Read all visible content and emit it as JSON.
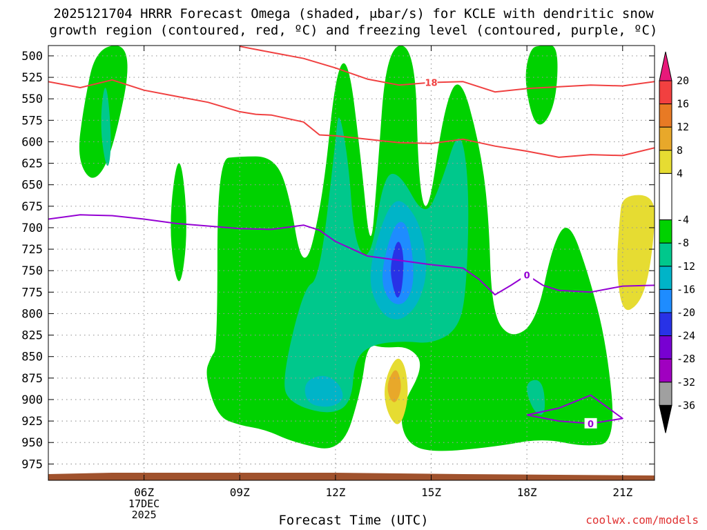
{
  "title_line1": "2025121704 HRRR Forecast Omega (shaded, μbar/s) for KCLE with dendritic snow",
  "title_line2": "growth region (contoured, red, ºC) and freezing level (contoured, purple, ºC)",
  "xlabel": "Forecast Time (UTC)",
  "credit": "coolwx.com/models",
  "colors": {
    "ground": "#a0522d",
    "dgz_contour": "#f04040",
    "freezing_contour": "#9400d3",
    "grid": "#9a9a9a"
  },
  "chart_data": {
    "type": "contour",
    "x_ticks": [
      "06Z",
      "09Z",
      "12Z",
      "15Z",
      "18Z",
      "21Z"
    ],
    "x_tick_hours": [
      6,
      9,
      12,
      15,
      18,
      21
    ],
    "x_date_label": [
      "17DEC",
      "2025"
    ],
    "x_range_hours": [
      3.0,
      22.0
    ],
    "y_ticks": [
      500,
      525,
      550,
      575,
      600,
      625,
      650,
      675,
      700,
      725,
      750,
      775,
      800,
      825,
      850,
      875,
      900,
      925,
      950,
      975
    ],
    "y_range_hpa": [
      488,
      994
    ],
    "grid": true,
    "colorbar": {
      "labels": [
        "20",
        "16",
        "12",
        "8",
        "4",
        "-4",
        "-8",
        "-12",
        "-16",
        "-20",
        "-24",
        "-28",
        "-32",
        "-36"
      ],
      "bins": [
        {
          "range": ">20",
          "color": "#e8197a"
        },
        {
          "range": "16 to 20",
          "color": "#f24040"
        },
        {
          "range": "12 to 16",
          "color": "#e87a24"
        },
        {
          "range": "8 to 12",
          "color": "#e8a82a"
        },
        {
          "range": "4 to 8",
          "color": "#e6dc32"
        },
        {
          "range": "-4 to 4",
          "color": "#ffffff"
        },
        {
          "range": "-8 to -4",
          "color": "#00d200"
        },
        {
          "range": "-12 to -8",
          "color": "#00c88c"
        },
        {
          "range": "-16 to -12",
          "color": "#00b4c8"
        },
        {
          "range": "-20 to -16",
          "color": "#1e8cff"
        },
        {
          "range": "-24 to -20",
          "color": "#2832e6"
        },
        {
          "range": "-28 to -24",
          "color": "#7800d2"
        },
        {
          "range": "-32 to -28",
          "color": "#a000c0"
        },
        {
          "range": "-36 to -32",
          "color": "#a0a0a0"
        },
        {
          "range": "<-36",
          "color": "#000000"
        }
      ]
    },
    "omega_regions": [
      {
        "bin": "-8 to -4",
        "points": [
          [
            4.5,
            488
          ],
          [
            5.7,
            488
          ],
          [
            5.0,
            615
          ],
          [
            4.4,
            650
          ],
          [
            3.9,
            620
          ],
          [
            4.1,
            560
          ]
        ]
      },
      {
        "bin": "-12 to -8",
        "points": [
          [
            4.8,
            520
          ],
          [
            5.0,
            600
          ],
          [
            4.85,
            640
          ],
          [
            4.6,
            580
          ]
        ]
      },
      {
        "bin": "-8 to -4",
        "points": [
          [
            7.1,
            600
          ],
          [
            7.4,
            700
          ],
          [
            7.1,
            783
          ],
          [
            6.75,
            700
          ]
        ]
      },
      {
        "bin": "-8 to -4",
        "points": [
          [
            8.3,
            840
          ],
          [
            8.3,
            620
          ],
          [
            9.0,
            617
          ],
          [
            10.0,
            617
          ],
          [
            10.5,
            650
          ],
          [
            11.0,
            760
          ],
          [
            11.6,
            668
          ],
          [
            12.0,
            520
          ],
          [
            12.4,
            500
          ],
          [
            12.8,
            620
          ],
          [
            13.1,
            735
          ],
          [
            13.3,
            645
          ],
          [
            13.6,
            488
          ],
          [
            14.5,
            488
          ],
          [
            14.6,
            650
          ],
          [
            14.9,
            690
          ],
          [
            15.4,
            560
          ],
          [
            15.9,
            520
          ],
          [
            16.5,
            600
          ],
          [
            16.8,
            680
          ],
          [
            16.9,
            800
          ],
          [
            17.5,
            830
          ],
          [
            18.3,
            810
          ],
          [
            18.8,
            720
          ],
          [
            19.3,
            690
          ],
          [
            19.9,
            750
          ],
          [
            20.5,
            835
          ],
          [
            20.8,
            950
          ],
          [
            19.8,
            955
          ],
          [
            18.5,
            945
          ],
          [
            17.0,
            955
          ],
          [
            15.0,
            962
          ],
          [
            14.2,
            950
          ],
          [
            14.0,
            913
          ],
          [
            14.8,
            860
          ],
          [
            14.3,
            838
          ],
          [
            13.5,
            840
          ],
          [
            13.0,
            835
          ],
          [
            12.8,
            890
          ],
          [
            12.2,
            962
          ],
          [
            10.7,
            950
          ],
          [
            9.8,
            935
          ],
          [
            9.0,
            930
          ],
          [
            8.3,
            920
          ],
          [
            7.9,
            870
          ],
          [
            8.1,
            850
          ]
        ]
      },
      {
        "bin": "-8 to -4",
        "points": [
          [
            18.5,
            488
          ],
          [
            19.0,
            488
          ],
          [
            18.9,
            560
          ],
          [
            18.3,
            590
          ],
          [
            17.9,
            530
          ],
          [
            18.1,
            490
          ]
        ]
      },
      {
        "bin": "-12 to -8",
        "points": [
          [
            10.3,
            880
          ],
          [
            11.0,
            770
          ],
          [
            11.5,
            760
          ],
          [
            12.0,
            600
          ],
          [
            12.1,
            560
          ],
          [
            12.4,
            620
          ],
          [
            12.6,
            720
          ],
          [
            13.1,
            740
          ],
          [
            13.5,
            640
          ],
          [
            14.0,
            635
          ],
          [
            14.8,
            690
          ],
          [
            15.3,
            650
          ],
          [
            15.9,
            578
          ],
          [
            16.2,
            650
          ],
          [
            16.1,
            780
          ],
          [
            15.8,
            820
          ],
          [
            15.0,
            835
          ],
          [
            14.2,
            832
          ],
          [
            13.2,
            835
          ],
          [
            12.6,
            852
          ],
          [
            12.5,
            905
          ],
          [
            11.8,
            918
          ],
          [
            10.6,
            905
          ]
        ]
      },
      {
        "bin": "-12 to -8",
        "points": [
          [
            17.9,
            880
          ],
          [
            18.5,
            875
          ],
          [
            18.6,
            920
          ],
          [
            18.2,
            915
          ]
        ]
      },
      {
        "bin": "-16 to -12",
        "points": [
          [
            11.0,
            880
          ],
          [
            11.6,
            870
          ],
          [
            12.1,
            880
          ],
          [
            12.3,
            900
          ],
          [
            11.8,
            910
          ],
          [
            11.1,
            905
          ]
        ]
      },
      {
        "bin": "-16 to -12",
        "points": [
          [
            13.0,
            760
          ],
          [
            13.4,
            700
          ],
          [
            13.8,
            668
          ],
          [
            14.2,
            670
          ],
          [
            14.7,
            700
          ],
          [
            14.9,
            750
          ],
          [
            14.6,
            790
          ],
          [
            14.0,
            810
          ],
          [
            13.4,
            800
          ]
        ]
      },
      {
        "bin": "-20 to -16",
        "points": [
          [
            13.4,
            760
          ],
          [
            13.7,
            710
          ],
          [
            14.0,
            690
          ],
          [
            14.3,
            700
          ],
          [
            14.5,
            760
          ],
          [
            14.2,
            790
          ],
          [
            13.7,
            788
          ]
        ]
      },
      {
        "bin": "-24 to -20",
        "points": [
          [
            13.7,
            745
          ],
          [
            13.95,
            710
          ],
          [
            14.15,
            730
          ],
          [
            14.1,
            770
          ],
          [
            13.95,
            785
          ],
          [
            13.8,
            770
          ]
        ]
      },
      {
        "bin": "4 to 8",
        "points": [
          [
            13.5,
            882
          ],
          [
            13.9,
            848
          ],
          [
            14.2,
            860
          ],
          [
            14.3,
            900
          ],
          [
            14.0,
            935
          ],
          [
            13.6,
            915
          ]
        ]
      },
      {
        "bin": "8 to 12",
        "points": [
          [
            13.6,
            882
          ],
          [
            13.9,
            860
          ],
          [
            14.1,
            885
          ],
          [
            13.9,
            905
          ],
          [
            13.7,
            900
          ]
        ]
      },
      {
        "bin": "4 to 8",
        "points": [
          [
            21.0,
            662
          ],
          [
            22.0,
            662
          ],
          [
            22.0,
            705
          ],
          [
            21.8,
            760
          ],
          [
            21.5,
            790
          ],
          [
            21.0,
            800
          ],
          [
            20.8,
            750
          ],
          [
            20.9,
            690
          ]
        ]
      }
    ],
    "dgz_contours": [
      {
        "label": "-18",
        "points": [
          [
            3.0,
            530
          ],
          [
            4.0,
            537
          ],
          [
            5.0,
            528
          ],
          [
            6.0,
            540
          ],
          [
            7.0,
            547
          ],
          [
            8.0,
            554
          ],
          [
            9.0,
            565
          ],
          [
            9.5,
            568
          ],
          [
            10.0,
            569
          ],
          [
            11.0,
            577
          ],
          [
            11.5,
            592
          ],
          [
            12.0,
            593
          ],
          [
            13.0,
            597
          ],
          [
            14.0,
            601
          ],
          [
            15.0,
            602
          ],
          [
            16.0,
            597
          ],
          [
            17.0,
            605
          ],
          [
            18.0,
            611
          ],
          [
            19.0,
            618
          ],
          [
            20.0,
            615
          ],
          [
            21.0,
            616
          ],
          [
            22.0,
            607
          ]
        ]
      },
      {
        "label": "-18",
        "points": [
          [
            9.0,
            489
          ],
          [
            10.0,
            496
          ],
          [
            11.0,
            503
          ],
          [
            12.0,
            514
          ],
          [
            13.0,
            527
          ],
          [
            14.0,
            534
          ],
          [
            15.0,
            531
          ],
          [
            16.0,
            530
          ],
          [
            17.0,
            542
          ],
          [
            18.0,
            538
          ],
          [
            19.0,
            536
          ],
          [
            20.0,
            534
          ],
          [
            21.0,
            535
          ],
          [
            22.0,
            530
          ]
        ]
      }
    ],
    "freezing_level": [
      {
        "label": "0",
        "points": [
          [
            3.0,
            690
          ],
          [
            4.0,
            685
          ],
          [
            5.0,
            686
          ],
          [
            6.0,
            690
          ],
          [
            7.0,
            695
          ],
          [
            8.0,
            698
          ],
          [
            9.0,
            701
          ],
          [
            10.0,
            702
          ],
          [
            11.0,
            697
          ],
          [
            11.5,
            703
          ],
          [
            12.0,
            716
          ],
          [
            13.0,
            733
          ],
          [
            14.0,
            738
          ],
          [
            15.0,
            743
          ],
          [
            16.0,
            747
          ],
          [
            16.5,
            760
          ],
          [
            17.0,
            778
          ],
          [
            17.5,
            767
          ],
          [
            18.0,
            755
          ],
          [
            18.5,
            767
          ],
          [
            19.0,
            773
          ],
          [
            20.0,
            775
          ],
          [
            21.0,
            768
          ],
          [
            22.0,
            767
          ]
        ]
      },
      {
        "label": "0",
        "points": [
          [
            18.0,
            918
          ],
          [
            19.0,
            910
          ],
          [
            20.0,
            895
          ],
          [
            21.0,
            922
          ],
          [
            20.0,
            928
          ],
          [
            19.0,
            925
          ],
          [
            18.0,
            918
          ]
        ]
      }
    ]
  }
}
